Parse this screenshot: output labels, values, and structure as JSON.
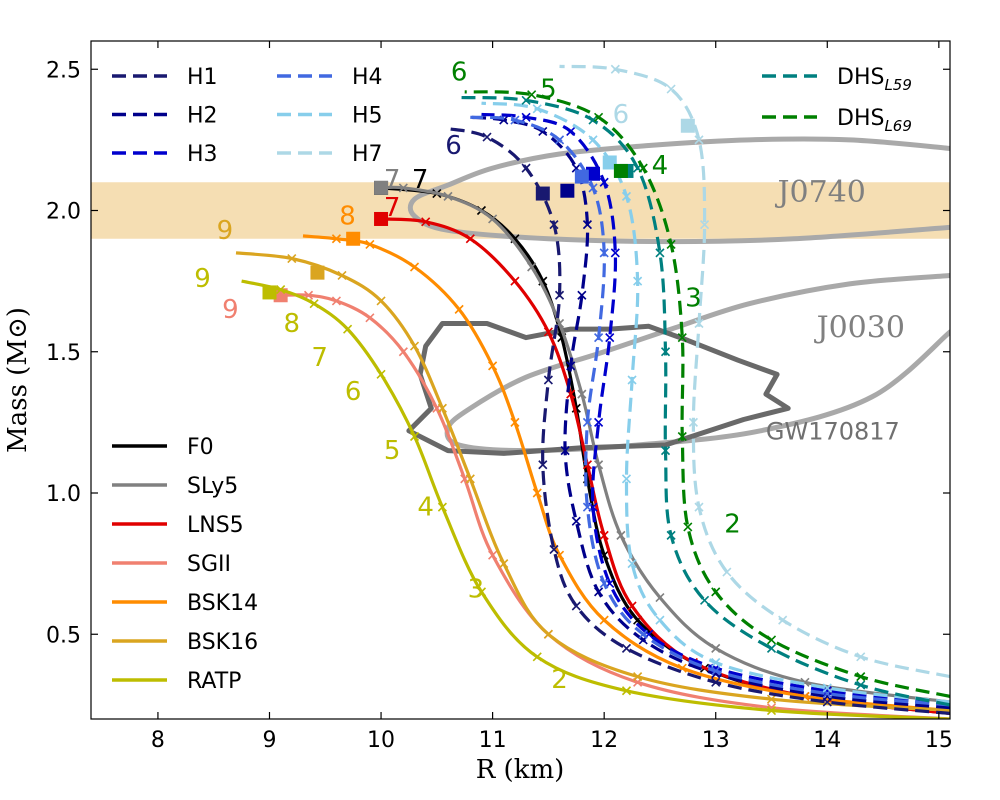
{
  "chart_data": {
    "type": "line",
    "title": "",
    "xlabel": "R (km)",
    "ylabel": "Mass (M⊙)",
    "xlim": [
      7.4,
      15.1
    ],
    "ylim": [
      0.2,
      2.6
    ],
    "xticks": [
      8,
      9,
      10,
      11,
      12,
      13,
      14,
      15
    ],
    "yticks": [
      0.5,
      1.0,
      1.5,
      2.0,
      2.5
    ],
    "band": {
      "name": "J0740",
      "ymin": 1.9,
      "ymax": 2.1,
      "color": "#f5deb3"
    },
    "series": [
      {
        "name": "F0",
        "color": "#000000",
        "dash": false,
        "x": [
          15.1,
          13.8,
          12.9,
          12.3,
          12.0,
          11.85,
          11.75,
          11.62,
          11.45,
          11.2,
          10.9,
          10.5,
          10.0
        ],
        "y": [
          0.22,
          0.28,
          0.38,
          0.55,
          0.78,
          1.05,
          1.3,
          1.55,
          1.75,
          1.9,
          2.0,
          2.06,
          2.08
        ],
        "peak": [
          10.0,
          2.08
        ]
      },
      {
        "name": "SLy5",
        "color": "#808080",
        "dash": false,
        "x": [
          15.1,
          13.8,
          13.0,
          12.5,
          12.15,
          11.95,
          11.8,
          11.6,
          11.35,
          11.0,
          10.6,
          10.2,
          10.0
        ],
        "y": [
          0.26,
          0.33,
          0.45,
          0.63,
          0.85,
          1.1,
          1.35,
          1.6,
          1.8,
          1.97,
          2.05,
          2.08,
          2.08
        ],
        "peak": [
          10.0,
          2.08
        ]
      },
      {
        "name": "LNS5",
        "color": "#e00000",
        "dash": false,
        "x": [
          15.1,
          13.8,
          12.8,
          12.25,
          12.0,
          11.85,
          11.7,
          11.5,
          11.2,
          10.8,
          10.4,
          10.0
        ],
        "y": [
          0.22,
          0.28,
          0.4,
          0.6,
          0.85,
          1.1,
          1.35,
          1.57,
          1.75,
          1.9,
          1.96,
          1.97
        ],
        "peak": [
          10.0,
          1.97
        ]
      },
      {
        "name": "SGII",
        "color": "#f08070",
        "dash": false,
        "x": [
          15.1,
          13.5,
          12.3,
          11.5,
          11.0,
          10.75,
          10.5,
          10.2,
          9.9,
          9.6,
          9.35,
          9.1
        ],
        "y": [
          0.2,
          0.24,
          0.33,
          0.5,
          0.78,
          1.05,
          1.3,
          1.5,
          1.62,
          1.68,
          1.7,
          1.7
        ],
        "peak": [
          9.1,
          1.7
        ]
      },
      {
        "name": "BSK14",
        "color": "#ff8c00",
        "dash": false,
        "x": [
          15.1,
          13.8,
          12.7,
          12.0,
          11.6,
          11.4,
          11.2,
          11.0,
          10.7,
          10.3,
          9.9,
          9.6,
          9.3
        ],
        "y": [
          0.23,
          0.28,
          0.38,
          0.55,
          0.78,
          1.0,
          1.25,
          1.45,
          1.65,
          1.8,
          1.88,
          1.9,
          1.91
        ],
        "peak": [
          9.75,
          1.9
        ]
      },
      {
        "name": "BSK16",
        "color": "#daa520",
        "dash": false,
        "x": [
          15.1,
          13.5,
          12.3,
          11.5,
          11.1,
          10.8,
          10.55,
          10.3,
          10.0,
          9.65,
          9.2,
          8.7
        ],
        "y": [
          0.23,
          0.27,
          0.35,
          0.5,
          0.75,
          1.05,
          1.3,
          1.52,
          1.68,
          1.77,
          1.83,
          1.85
        ],
        "peak": [
          9.43,
          1.78
        ]
      },
      {
        "name": "RATP",
        "color": "#bdbd00",
        "dash": false,
        "x": [
          15.1,
          13.5,
          12.2,
          11.4,
          10.9,
          10.55,
          10.3,
          10.0,
          9.7,
          9.4,
          9.1,
          8.75
        ],
        "y": [
          0.2,
          0.23,
          0.3,
          0.42,
          0.65,
          0.95,
          1.2,
          1.42,
          1.58,
          1.67,
          1.72,
          1.75
        ],
        "peak": [
          9.0,
          1.71
        ]
      },
      {
        "name": "H1",
        "color": "#191970",
        "dash": true,
        "x": [
          15.1,
          14.0,
          13.0,
          12.2,
          11.75,
          11.55,
          11.45,
          11.5,
          11.6,
          11.55,
          11.3,
          10.95,
          10.6
        ],
        "y": [
          0.22,
          0.26,
          0.33,
          0.45,
          0.6,
          0.8,
          1.1,
          1.4,
          1.7,
          1.95,
          2.15,
          2.26,
          2.29
        ],
        "peak": [
          11.45,
          2.06
        ]
      },
      {
        "name": "H2",
        "color": "#00008b",
        "dash": true,
        "x": [
          15.1,
          14.0,
          13.0,
          12.35,
          11.95,
          11.75,
          11.65,
          11.7,
          11.8,
          11.85,
          11.75,
          11.45,
          11.1,
          10.8
        ],
        "y": [
          0.24,
          0.28,
          0.36,
          0.48,
          0.65,
          0.9,
          1.15,
          1.45,
          1.7,
          1.95,
          2.15,
          2.28,
          2.32,
          2.33
        ],
        "peak": [
          11.67,
          2.07
        ]
      },
      {
        "name": "H3",
        "color": "#0000cd",
        "dash": true,
        "x": [
          15.1,
          14.0,
          13.0,
          12.4,
          12.05,
          11.9,
          11.95,
          12.05,
          12.1,
          12.0,
          11.7,
          11.3,
          10.9
        ],
        "y": [
          0.25,
          0.3,
          0.38,
          0.5,
          0.68,
          0.95,
          1.25,
          1.55,
          1.85,
          2.1,
          2.28,
          2.33,
          2.34
        ],
        "peak": [
          11.9,
          2.13
        ]
      },
      {
        "name": "H4",
        "color": "#4169e1",
        "dash": true,
        "x": [
          15.1,
          14.0,
          13.0,
          12.35,
          12.0,
          11.85,
          11.85,
          11.95,
          12.0,
          11.9,
          11.6,
          11.2,
          10.8
        ],
        "y": [
          0.25,
          0.29,
          0.37,
          0.5,
          0.68,
          0.95,
          1.25,
          1.55,
          1.85,
          2.08,
          2.25,
          2.32,
          2.33
        ],
        "peak": [
          11.8,
          2.12
        ]
      },
      {
        "name": "H5",
        "color": "#87ceeb",
        "dash": true,
        "x": [
          15.1,
          14.0,
          13.0,
          12.5,
          12.25,
          12.2,
          12.25,
          12.3,
          12.2,
          11.9,
          11.4,
          10.9
        ],
        "y": [
          0.26,
          0.31,
          0.4,
          0.55,
          0.75,
          1.05,
          1.4,
          1.75,
          2.05,
          2.25,
          2.36,
          2.38
        ],
        "peak": [
          12.05,
          2.17
        ]
      },
      {
        "name": "H7",
        "color": "#add8e6",
        "dash": true,
        "x": [
          15.1,
          14.3,
          13.6,
          13.1,
          12.85,
          12.8,
          12.85,
          12.9,
          12.85,
          12.6,
          12.1,
          11.6
        ],
        "y": [
          0.35,
          0.42,
          0.55,
          0.72,
          0.95,
          1.25,
          1.6,
          1.95,
          2.25,
          2.43,
          2.5,
          2.51
        ],
        "peak": [
          12.75,
          2.3
        ]
      },
      {
        "name": "DHS_L59",
        "color": "#008080",
        "dash": true,
        "x": [
          15.1,
          14.3,
          13.5,
          12.9,
          12.6,
          12.55,
          12.55,
          12.5,
          12.3,
          11.9,
          11.3,
          10.7
        ],
        "y": [
          0.25,
          0.32,
          0.45,
          0.62,
          0.85,
          1.15,
          1.5,
          1.85,
          2.15,
          2.32,
          2.39,
          2.4
        ],
        "peak": [
          12.2,
          2.14
        ]
      },
      {
        "name": "DHS_L69",
        "color": "#008000",
        "dash": true,
        "x": [
          15.1,
          14.3,
          13.5,
          13.0,
          12.75,
          12.7,
          12.7,
          12.6,
          12.35,
          11.95,
          11.35,
          10.75
        ],
        "y": [
          0.28,
          0.35,
          0.48,
          0.65,
          0.88,
          1.2,
          1.55,
          1.88,
          2.15,
          2.33,
          2.41,
          2.42
        ],
        "peak": [
          12.15,
          2.14
        ]
      }
    ],
    "legend_left_top": [
      {
        "name": "H1",
        "label": "H1"
      },
      {
        "name": "H2",
        "label": "H2"
      },
      {
        "name": "H3",
        "label": "H3"
      },
      {
        "name": "H4",
        "label": "H4"
      },
      {
        "name": "H5",
        "label": "H5"
      },
      {
        "name": "H7",
        "label": "H7"
      }
    ],
    "legend_right_top": [
      {
        "name": "DHS_L59",
        "label_main": "DHS",
        "label_sub": "L59"
      },
      {
        "name": "DHS_L69",
        "label_main": "DHS",
        "label_sub": "L69"
      }
    ],
    "legend_bottom": [
      {
        "name": "F0",
        "label": "F0"
      },
      {
        "name": "SLy5",
        "label": "SLy5"
      },
      {
        "name": "LNS5",
        "label": "LNS5"
      },
      {
        "name": "SGII",
        "label": "SGII"
      },
      {
        "name": "BSK14",
        "label": "BSK14"
      },
      {
        "name": "BSK16",
        "label": "BSK16"
      },
      {
        "name": "RATP",
        "label": "RATP"
      }
    ],
    "contours": [
      {
        "name": "J0740",
        "color": "#a9a9a9",
        "points": [
          [
            15.1,
            2.22
          ],
          [
            14.2,
            2.25
          ],
          [
            13.3,
            2.25
          ],
          [
            12.4,
            2.23
          ],
          [
            11.6,
            2.2
          ],
          [
            11.0,
            2.15
          ],
          [
            10.6,
            2.09
          ],
          [
            10.3,
            2.04
          ],
          [
            10.3,
            1.98
          ],
          [
            10.6,
            1.93
          ],
          [
            11.5,
            1.9
          ],
          [
            12.6,
            1.89
          ],
          [
            13.7,
            1.9
          ],
          [
            15.1,
            1.94
          ]
        ]
      },
      {
        "name": "J0030",
        "color": "#a9a9a9",
        "points": [
          [
            15.1,
            1.77
          ],
          [
            14.2,
            1.74
          ],
          [
            13.3,
            1.67
          ],
          [
            12.6,
            1.58
          ],
          [
            12.0,
            1.5
          ],
          [
            11.3,
            1.41
          ],
          [
            10.8,
            1.3
          ],
          [
            10.6,
            1.23
          ],
          [
            10.7,
            1.17
          ],
          [
            11.3,
            1.15
          ],
          [
            12.3,
            1.17
          ],
          [
            13.4,
            1.22
          ],
          [
            14.4,
            1.34
          ],
          [
            15.1,
            1.57
          ]
        ]
      },
      {
        "name": "GW170817",
        "color": "#696969",
        "points": [
          [
            10.25,
            1.22
          ],
          [
            10.45,
            1.3
          ],
          [
            10.35,
            1.42
          ],
          [
            10.4,
            1.52
          ],
          [
            10.55,
            1.6
          ],
          [
            10.95,
            1.6
          ],
          [
            11.3,
            1.55
          ],
          [
            11.7,
            1.58
          ],
          [
            12.05,
            1.58
          ],
          [
            12.4,
            1.59
          ],
          [
            12.75,
            1.54
          ],
          [
            13.2,
            1.47
          ],
          [
            13.55,
            1.42
          ],
          [
            13.45,
            1.35
          ],
          [
            13.65,
            1.3
          ],
          [
            13.25,
            1.26
          ],
          [
            12.55,
            1.17
          ],
          [
            11.8,
            1.16
          ],
          [
            11.1,
            1.14
          ],
          [
            10.6,
            1.15
          ],
          [
            10.25,
            1.22
          ]
        ]
      }
    ],
    "region_labels": [
      {
        "text": "J0740",
        "x": 13.95,
        "y": 2.03,
        "kind": "region"
      },
      {
        "text": "J0030",
        "x": 14.3,
        "y": 1.55,
        "kind": "region"
      },
      {
        "text": "GW170817",
        "x": 14.05,
        "y": 1.19,
        "kind": "gw"
      }
    ],
    "annotations": [
      {
        "text": "9",
        "x": 8.6,
        "y": 1.9,
        "color": "#daa520"
      },
      {
        "text": "8",
        "x": 9.7,
        "y": 1.95,
        "color": "#ff8c00"
      },
      {
        "text": "7",
        "x": 10.1,
        "y": 2.08,
        "color": "#808080"
      },
      {
        "text": "7",
        "x": 10.35,
        "y": 2.08,
        "color": "#000000"
      },
      {
        "text": "7",
        "x": 10.1,
        "y": 1.98,
        "color": "#e00000"
      },
      {
        "text": "9",
        "x": 8.4,
        "y": 1.73,
        "color": "#bdbd00"
      },
      {
        "text": "9",
        "x": 8.65,
        "y": 1.62,
        "color": "#f08070"
      },
      {
        "text": "8",
        "x": 9.2,
        "y": 1.57,
        "color": "#bdbd00"
      },
      {
        "text": "7",
        "x": 9.45,
        "y": 1.45,
        "color": "#bdbd00"
      },
      {
        "text": "6",
        "x": 9.75,
        "y": 1.33,
        "color": "#bdbd00"
      },
      {
        "text": "5",
        "x": 10.1,
        "y": 1.12,
        "color": "#bdbd00"
      },
      {
        "text": "4",
        "x": 10.4,
        "y": 0.92,
        "color": "#bdbd00"
      },
      {
        "text": "3",
        "x": 10.85,
        "y": 0.63,
        "color": "#bdbd00"
      },
      {
        "text": "2",
        "x": 11.6,
        "y": 0.31,
        "color": "#bdbd00"
      },
      {
        "text": "6",
        "x": 10.7,
        "y": 2.46,
        "color": "#008000"
      },
      {
        "text": "5",
        "x": 11.5,
        "y": 2.4,
        "color": "#008000"
      },
      {
        "text": "6",
        "x": 12.15,
        "y": 2.31,
        "color": "#add8e6"
      },
      {
        "text": "6",
        "x": 10.65,
        "y": 2.2,
        "color": "#191970"
      },
      {
        "text": "4",
        "x": 12.5,
        "y": 2.13,
        "color": "#008000"
      },
      {
        "text": "3",
        "x": 12.8,
        "y": 1.66,
        "color": "#008000"
      },
      {
        "text": "2",
        "x": 13.15,
        "y": 0.86,
        "color": "#008000"
      }
    ]
  }
}
